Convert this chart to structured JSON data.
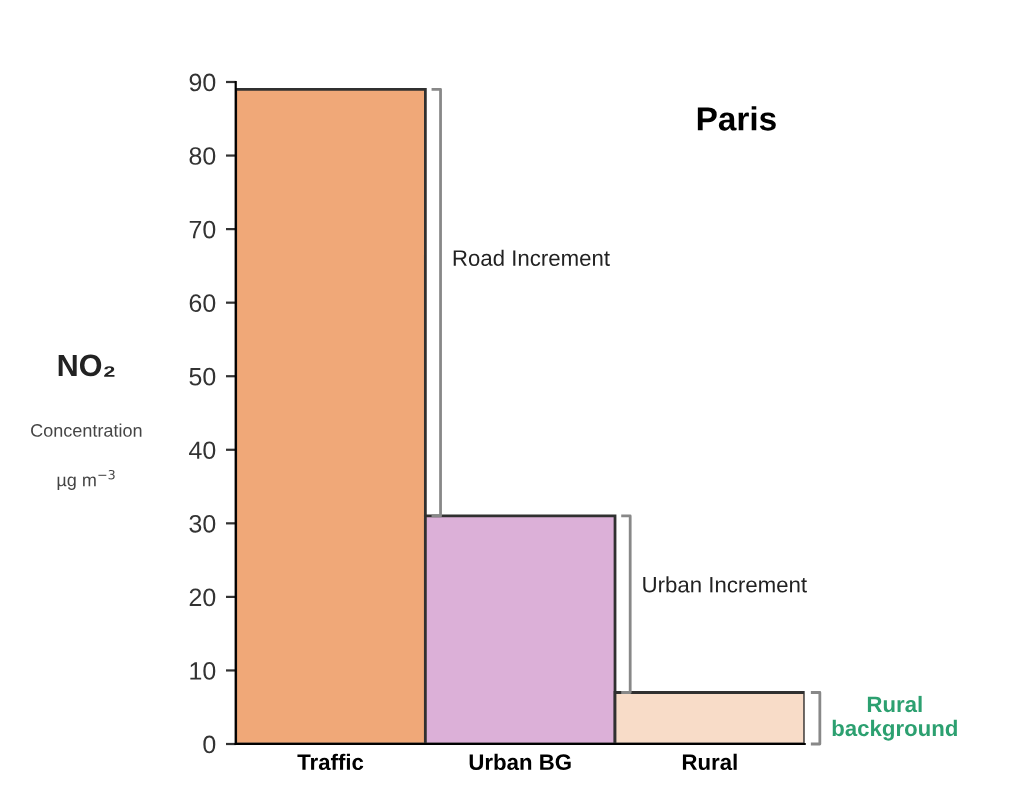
{
  "chart_data": {
    "type": "bar",
    "title": "Paris",
    "ylabel": "NO₂\nConcentration\nµg m$^{−3}$",
    "categories": [
      "Traffic",
      "Urban BG",
      "Rural"
    ],
    "values": [
      89,
      31,
      7
    ],
    "colors": [
      "#f0a878",
      "#dcb0d8",
      "#f8dcc8"
    ],
    "ylim": [
      0,
      90
    ],
    "yticks": [
      0,
      10,
      20,
      30,
      40,
      50,
      60,
      70,
      80,
      90
    ],
    "grid": false,
    "annotations": [
      "Road Increment",
      "Urban Increment",
      "Rural\nbackground"
    ]
  }
}
